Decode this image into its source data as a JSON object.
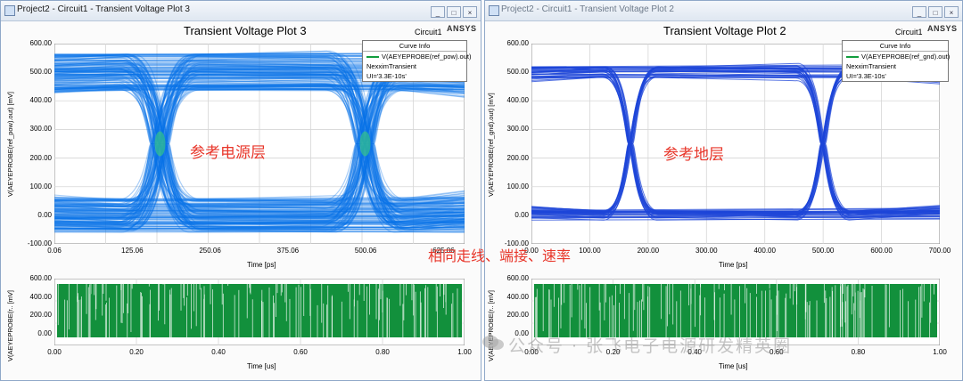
{
  "left_window": {
    "title": "Project2 - Circuit1 - Transient Voltage Plot 3",
    "buttons": [
      "_",
      "□",
      "×"
    ],
    "plot_title": "Transient Voltage Plot 3",
    "circuit": "Circuit1",
    "brand": "ANSYS",
    "legend": {
      "header": "Curve Info",
      "line1": "V(AEYEPROBE(ref_pow).out)",
      "line2": "NexximTransient",
      "line3": "UI='3.3E-10s'"
    },
    "annotation": "参考电源层",
    "eye_yticks": [
      "600.00",
      "500.00",
      "400.00",
      "300.00",
      "200.00",
      "100.00",
      "0.00",
      "-100.00"
    ],
    "eye_xticks": [
      "0.06",
      "125.06",
      "250.06",
      "375.06",
      "500.06",
      "625.06"
    ],
    "eye_xlabel": "Time [ps]",
    "eye_ylabel": "V(AEYEPROBE(ref_pow).out) [mV]",
    "bit_yticks": [
      "600.00",
      "400.00",
      "200.00",
      "0.00"
    ],
    "bit_xticks": [
      "0.00",
      "0.20",
      "0.40",
      "0.60",
      "0.80",
      "1.00"
    ],
    "bit_xlabel": "Time [us]",
    "bit_ylabel": "V(AEYEPROBE(r.. [mV]"
  },
  "right_window": {
    "title": "Project2 - Circuit1 - Transient Voltage Plot 2",
    "buttons": [
      "_",
      "□",
      "×"
    ],
    "plot_title": "Transient Voltage Plot 2",
    "circuit": "Circuit1",
    "brand": "ANSYS",
    "legend": {
      "header": "Curve Info",
      "line1": "V(AEYEPROBE(ref_gnd).out)",
      "line2": "NexximTransient",
      "line3": "UI='3.3E-10s'"
    },
    "annotation": "参考地层",
    "eye_yticks": [
      "600.00",
      "500.00",
      "400.00",
      "300.00",
      "200.00",
      "100.00",
      "0.00",
      "-100.00"
    ],
    "eye_xticks": [
      "0.00",
      "100.00",
      "200.00",
      "300.00",
      "400.00",
      "500.00",
      "600.00",
      "700.00"
    ],
    "eye_xlabel": "Time [ps]",
    "eye_ylabel": "V(AEYEPROBE(ref_gnd).out) [mV]",
    "bit_yticks": [
      "600.00",
      "400.00",
      "200.00",
      "0.00"
    ],
    "bit_xticks": [
      "0.00",
      "0.20",
      "0.40",
      "0.60",
      "0.80",
      "1.00"
    ],
    "bit_xlabel": "Time [us]",
    "bit_ylabel": "V(AEYEPROBE(r.. [mV]"
  },
  "center_annotation": "相同走线、端接、速率",
  "watermark": "公众号 · 张飞电子电源研发精英圈",
  "colors": {
    "eye_left": "#0a72e8",
    "eye_right": "#1e46d8",
    "bitstream": "#12903c",
    "annotation": "#e8362a"
  },
  "chart_data": [
    {
      "type": "line",
      "title": "Transient Voltage Plot 3",
      "xlabel": "Time [ps]",
      "ylabel": "V(AEYEPROBE(ref_pow).out) [mV]",
      "xlim": [
        0.06,
        660
      ],
      "ylim": [
        -100,
        600
      ],
      "series": [
        {
          "name": "V(AEYEPROBE(ref_pow).out)",
          "description_levels": {
            "high_mV": 500,
            "low_mV": 0,
            "crossing_mV": 250,
            "crossing_times_ps": [
              170,
              500
            ]
          }
        }
      ]
    },
    {
      "type": "line",
      "title": "Transient Voltage Plot 2",
      "xlabel": "Time [ps]",
      "ylabel": "V(AEYEPROBE(ref_gnd).out) [mV]",
      "xlim": [
        0,
        700
      ],
      "ylim": [
        -100,
        600
      ],
      "series": [
        {
          "name": "V(AEYEPROBE(ref_gnd).out)",
          "description_levels": {
            "high_mV": 500,
            "low_mV": 0,
            "crossing_mV": 250,
            "crossing_times_ps": [
              170,
              500
            ]
          }
        }
      ]
    },
    {
      "type": "line",
      "title": "",
      "xlabel": "Time [us]",
      "ylabel": "V(AEYEPROBE(r.. [mV]",
      "xlim": [
        0,
        1
      ],
      "ylim": [
        -50,
        600
      ]
    },
    {
      "type": "line",
      "title": "",
      "xlabel": "Time [us]",
      "ylabel": "V(AEYEPROBE(r.. [mV]",
      "xlim": [
        0,
        1
      ],
      "ylim": [
        -50,
        600
      ]
    }
  ]
}
